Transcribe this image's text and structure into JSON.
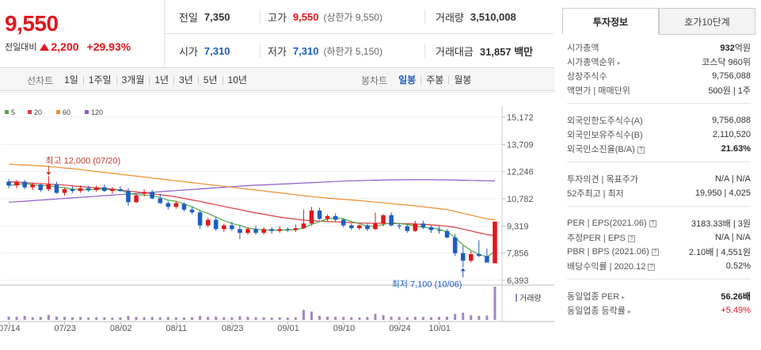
{
  "quote": {
    "price": "9,550",
    "change_label": "전일대비",
    "change_amount": "2,200",
    "change_percent": "+29.93%",
    "prev_close_label": "전일",
    "prev_close": "7,350",
    "high_label": "고가",
    "high": "9,550",
    "upper_limit": "(상한가 9,550)",
    "volume_label": "거래량",
    "volume": "3,510,008",
    "open_label": "시가",
    "open": "7,310",
    "low_label": "저가",
    "low": "7,310",
    "lower_limit": "(하한가 5,150)",
    "amount_label": "거래대금",
    "amount": "31,857 백만",
    "colors": {
      "up": "#e0151d",
      "down": "#1d5fc1"
    }
  },
  "tabs": {
    "line_title": "선차트",
    "line_items": [
      "1일",
      "1주일",
      "3개월",
      "1년",
      "3년",
      "5년",
      "10년"
    ],
    "candle_title": "봉차트",
    "candle_items": [
      "일봉",
      "주봉",
      "월봉"
    ],
    "candle_selected": "일봉"
  },
  "chart_data": {
    "type": "candlestick",
    "legend": [
      {
        "name": "5",
        "color": "#4cae3f"
      },
      {
        "name": "20",
        "color": "#e03a3a"
      },
      {
        "name": "60",
        "color": "#f08c2a"
      },
      {
        "name": "120",
        "color": "#8c5cc8"
      }
    ],
    "y_ticks": [
      "15,172",
      "13,709",
      "12,246",
      "10,782",
      "9,319",
      "7,856",
      "6,393"
    ],
    "ylim": [
      6393,
      15172
    ],
    "x_ticks": [
      "07/14",
      "07/23",
      "08/02",
      "08/11",
      "08/23",
      "09/01",
      "09/10",
      "09/24",
      "10/01"
    ],
    "annotations": {
      "high": "최고 12,000 (07/20)",
      "low": "최저 7,100 (10/06)"
    },
    "volume_label": "거래량",
    "candles": [
      {
        "o": 11700,
        "h": 11850,
        "l": 11350,
        "c": 11500
      },
      {
        "o": 11500,
        "h": 11800,
        "l": 11350,
        "c": 11700
      },
      {
        "o": 11700,
        "h": 11800,
        "l": 11300,
        "c": 11400
      },
      {
        "o": 11400,
        "h": 11650,
        "l": 11250,
        "c": 11550
      },
      {
        "o": 11550,
        "h": 11600,
        "l": 11150,
        "c": 11250
      },
      {
        "o": 11300,
        "h": 12000,
        "l": 11200,
        "c": 11550
      },
      {
        "o": 11550,
        "h": 11700,
        "l": 11050,
        "c": 11100
      },
      {
        "o": 11100,
        "h": 11400,
        "l": 10950,
        "c": 11300
      },
      {
        "o": 11300,
        "h": 11450,
        "l": 11100,
        "c": 11200
      },
      {
        "o": 11200,
        "h": 11500,
        "l": 11100,
        "c": 11350
      },
      {
        "o": 11350,
        "h": 11500,
        "l": 11150,
        "c": 11250
      },
      {
        "o": 11250,
        "h": 11500,
        "l": 11150,
        "c": 11400
      },
      {
        "o": 11400,
        "h": 11550,
        "l": 11150,
        "c": 11200
      },
      {
        "o": 11200,
        "h": 11400,
        "l": 11050,
        "c": 11300
      },
      {
        "o": 11300,
        "h": 11450,
        "l": 11150,
        "c": 11200
      },
      {
        "o": 11200,
        "h": 11350,
        "l": 10400,
        "c": 10600
      },
      {
        "o": 10600,
        "h": 11050,
        "l": 10550,
        "c": 10950
      },
      {
        "o": 11050,
        "h": 11300,
        "l": 10900,
        "c": 11150
      },
      {
        "o": 11150,
        "h": 11250,
        "l": 10750,
        "c": 10800
      },
      {
        "o": 10800,
        "h": 11050,
        "l": 10500,
        "c": 10550
      },
      {
        "o": 10550,
        "h": 10650,
        "l": 10200,
        "c": 10350
      },
      {
        "o": 10350,
        "h": 10650,
        "l": 10250,
        "c": 10550
      },
      {
        "o": 10500,
        "h": 10600,
        "l": 10100,
        "c": 10200
      },
      {
        "o": 10200,
        "h": 10350,
        "l": 9950,
        "c": 10050
      },
      {
        "o": 10050,
        "h": 10150,
        "l": 9150,
        "c": 9350
      },
      {
        "o": 9350,
        "h": 9750,
        "l": 9250,
        "c": 9650
      },
      {
        "o": 9650,
        "h": 9800,
        "l": 9050,
        "c": 9150
      },
      {
        "o": 9150,
        "h": 9450,
        "l": 9000,
        "c": 9350
      },
      {
        "o": 9350,
        "h": 9550,
        "l": 9050,
        "c": 9150
      },
      {
        "o": 9150,
        "h": 9350,
        "l": 8600,
        "c": 8950
      },
      {
        "o": 8950,
        "h": 9250,
        "l": 8850,
        "c": 9150
      },
      {
        "o": 9150,
        "h": 9350,
        "l": 8850,
        "c": 8950
      },
      {
        "o": 8950,
        "h": 9250,
        "l": 8850,
        "c": 9150
      },
      {
        "o": 9150,
        "h": 9250,
        "l": 8900,
        "c": 9050
      },
      {
        "o": 9050,
        "h": 9300,
        "l": 8950,
        "c": 9150
      },
      {
        "o": 9150,
        "h": 9250,
        "l": 9000,
        "c": 9100
      },
      {
        "o": 9100,
        "h": 9400,
        "l": 9000,
        "c": 9200
      },
      {
        "o": 9200,
        "h": 10200,
        "l": 9150,
        "c": 9450
      },
      {
        "o": 9450,
        "h": 10350,
        "l": 9350,
        "c": 10150
      },
      {
        "o": 10150,
        "h": 10300,
        "l": 9650,
        "c": 9700
      },
      {
        "o": 9700,
        "h": 9950,
        "l": 9550,
        "c": 9850
      },
      {
        "o": 9850,
        "h": 10000,
        "l": 9550,
        "c": 9650
      },
      {
        "o": 9650,
        "h": 9750,
        "l": 9250,
        "c": 9350
      },
      {
        "o": 9350,
        "h": 9450,
        "l": 9100,
        "c": 9200
      },
      {
        "o": 9200,
        "h": 9400,
        "l": 9100,
        "c": 9350
      },
      {
        "o": 9350,
        "h": 9450,
        "l": 9050,
        "c": 9150
      },
      {
        "o": 9150,
        "h": 10050,
        "l": 9100,
        "c": 9450
      },
      {
        "o": 9450,
        "h": 9950,
        "l": 9300,
        "c": 9900
      },
      {
        "o": 9900,
        "h": 10050,
        "l": 9300,
        "c": 9350
      },
      {
        "o": 9350,
        "h": 9450,
        "l": 9150,
        "c": 9300
      },
      {
        "o": 9300,
        "h": 9400,
        "l": 8950,
        "c": 9050
      },
      {
        "o": 9050,
        "h": 9600,
        "l": 9000,
        "c": 9450
      },
      {
        "o": 9450,
        "h": 9600,
        "l": 9150,
        "c": 9250
      },
      {
        "o": 9250,
        "h": 9350,
        "l": 8950,
        "c": 9100
      },
      {
        "o": 9100,
        "h": 9300,
        "l": 8900,
        "c": 9050
      },
      {
        "o": 9050,
        "h": 9150,
        "l": 8650,
        "c": 8700
      },
      {
        "o": 8700,
        "h": 8900,
        "l": 7700,
        "c": 7850
      },
      {
        "o": 7850,
        "h": 8250,
        "l": 7100,
        "c": 7450
      },
      {
        "o": 7450,
        "h": 7950,
        "l": 7350,
        "c": 7800
      },
      {
        "o": 7800,
        "h": 8550,
        "l": 7650,
        "c": 7700
      },
      {
        "o": 7700,
        "h": 8100,
        "l": 7400,
        "c": 7350
      },
      {
        "o": 7310,
        "h": 9550,
        "l": 7310,
        "c": 9550
      }
    ],
    "volumes": [
      10,
      9,
      12,
      8,
      9,
      15,
      10,
      9,
      8,
      9,
      7,
      8,
      8,
      7,
      8,
      12,
      9,
      8,
      9,
      8,
      9,
      8,
      7,
      8,
      12,
      9,
      10,
      8,
      8,
      11,
      9,
      8,
      8,
      7,
      8,
      7,
      8,
      30,
      25,
      12,
      10,
      9,
      9,
      8,
      7,
      9,
      18,
      14,
      10,
      9,
      8,
      10,
      9,
      8,
      9,
      10,
      18,
      22,
      14,
      12,
      13,
      100
    ],
    "ma5": [
      11500,
      11550,
      11600,
      11550,
      11500,
      11480,
      11420,
      11380,
      11300,
      11280,
      11250,
      11300,
      11300,
      11260,
      11250,
      11080,
      11000,
      10980,
      10950,
      10850,
      10700,
      10650,
      10500,
      10350,
      10150,
      10000,
      9800,
      9600,
      9450,
      9350,
      9200,
      9150,
      9100,
      9080,
      9100,
      9100,
      9120,
      9200,
      9400,
      9550,
      9700,
      9750,
      9700,
      9550,
      9450,
      9300,
      9300,
      9400,
      9500,
      9450,
      9400,
      9300,
      9250,
      9200,
      9150,
      9000,
      8700,
      8300,
      8000,
      7800,
      7650,
      7950
    ],
    "ma20": [
      11700,
      11680,
      11650,
      11620,
      11600,
      11580,
      11550,
      11520,
      11480,
      11440,
      11400,
      11370,
      11340,
      11300,
      11250,
      11200,
      11150,
      11100,
      11050,
      11000,
      10950,
      10880,
      10800,
      10720,
      10640,
      10550,
      10460,
      10370,
      10280,
      10200,
      10100,
      10020,
      9950,
      9870,
      9800,
      9740,
      9680,
      9630,
      9600,
      9580,
      9560,
      9540,
      9520,
      9500,
      9480,
      9470,
      9460,
      9460,
      9450,
      9450,
      9440,
      9420,
      9400,
      9380,
      9350,
      9300,
      9250,
      9150,
      9050,
      8950,
      8850,
      8800
    ],
    "ma60": [
      12650,
      12620,
      12600,
      12580,
      12550,
      12520,
      12480,
      12440,
      12400,
      12350,
      12300,
      12250,
      12200,
      12150,
      12100,
      12050,
      12000,
      11950,
      11900,
      11850,
      11800,
      11750,
      11700,
      11650,
      11600,
      11550,
      11500,
      11450,
      11400,
      11350,
      11300,
      11250,
      11200,
      11150,
      11100,
      11050,
      11000,
      10950,
      10900,
      10860,
      10820,
      10780,
      10750,
      10720,
      10680,
      10640,
      10600,
      10560,
      10520,
      10480,
      10440,
      10400,
      10350,
      10300,
      10250,
      10200,
      10100,
      10000,
      9900,
      9800,
      9700,
      9650
    ],
    "ma120": [
      10600,
      10620,
      10650,
      10680,
      10710,
      10740,
      10770,
      10800,
      10830,
      10860,
      10890,
      10920,
      10950,
      10980,
      11010,
      11040,
      11070,
      11100,
      11130,
      11160,
      11190,
      11220,
      11250,
      11280,
      11310,
      11340,
      11370,
      11400,
      11430,
      11460,
      11490,
      11510,
      11530,
      11550,
      11570,
      11590,
      11610,
      11630,
      11650,
      11670,
      11690,
      11710,
      11730,
      11750,
      11760,
      11770,
      11780,
      11790,
      11800,
      11800,
      11810,
      11810,
      11810,
      11810,
      11800,
      11800,
      11790,
      11780,
      11770,
      11760,
      11750,
      11740
    ]
  },
  "info": {
    "tab_invest": "투자정보",
    "tab_order": "호가10단계",
    "rows": [
      {
        "k": "시가총액",
        "v": "932",
        "unit": "억원"
      },
      {
        "k": "시가총액순위",
        "v": "코스닥 960위"
      },
      {
        "k": "상장주식수",
        "v": "9,756,088"
      },
      {
        "k": "액면가 | 매매단위",
        "v": "500원 | 1주"
      },
      {
        "k": "외국인한도주식수(A)",
        "v": "9,756,088"
      },
      {
        "k": "외국인보유주식수(B)",
        "v": "2,110,520"
      },
      {
        "k": "외국인소진율(B/A)",
        "v": "21.63%"
      },
      {
        "k": "투자의견 | 목표주가",
        "v": "N/A | N/A"
      },
      {
        "k": "52주최고 | 최저",
        "v": "19,950 | 4,025"
      },
      {
        "k": "PER | EPS(2021.06)",
        "v": "3183.33배 | 3원"
      },
      {
        "k": "추정PER | EPS",
        "v": "N/A | N/A"
      },
      {
        "k": "PBR | BPS (2021.06)",
        "v": "2.10배 | 4,551원"
      },
      {
        "k": "배당수익률 | 2020.12",
        "v": "0.52%"
      },
      {
        "k": "동일업종 PER",
        "v": "56.26배"
      },
      {
        "k": "동일업종 등락률",
        "v": "+5.49%"
      }
    ]
  }
}
